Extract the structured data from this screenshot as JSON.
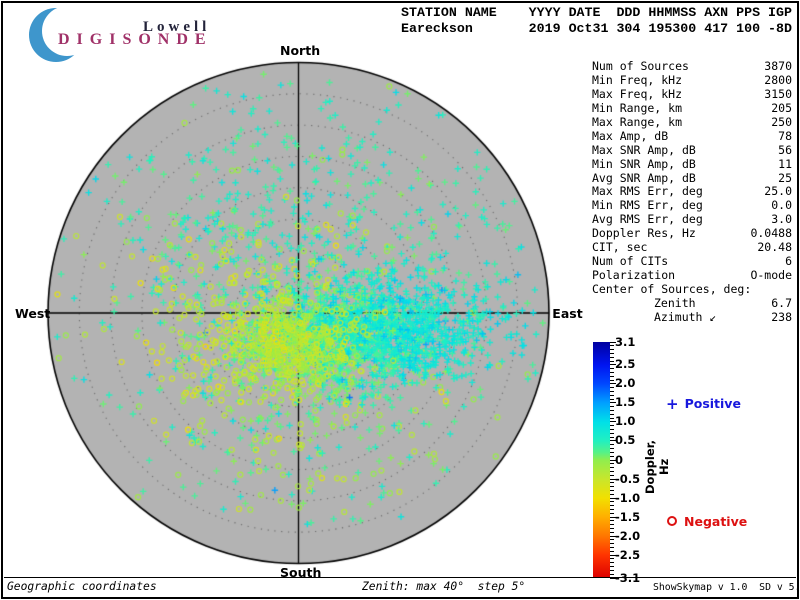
{
  "logo": {
    "brand_top": "Lowell",
    "brand_bottom": "DIGISONDE",
    "crescent_color": "#3e96cc"
  },
  "header": {
    "line1": "STATION NAME    YYYY DATE  DDD HHMMSS AXN PPS IGP",
    "line2": "Eareckson       2019 Oct31 304 195300 417 100 -8D"
  },
  "stats": {
    "rows": [
      {
        "label": "Num of Sources",
        "value": "3870"
      },
      {
        "label": "Min Freq, kHz",
        "value": "2800"
      },
      {
        "label": "Max Freq, kHz",
        "value": "3150"
      },
      {
        "label": "Min Range, km",
        "value": "205"
      },
      {
        "label": "Max Range, km",
        "value": "250"
      },
      {
        "label": "Max Amp, dB",
        "value": "78"
      },
      {
        "label": "Max SNR Amp, dB",
        "value": "56"
      },
      {
        "label": "Min SNR Amp, dB",
        "value": "11"
      },
      {
        "label": "Avg SNR Amp, dB",
        "value": "25"
      },
      {
        "label": "Max RMS Err, deg",
        "value": "25.0"
      },
      {
        "label": "Min RMS Err, deg",
        "value": "0.0"
      },
      {
        "label": "Avg RMS Err, deg",
        "value": "3.0"
      },
      {
        "label": "Doppler Res, Hz",
        "value": "0.0488"
      },
      {
        "label": "CIT, sec",
        "value": "20.48"
      },
      {
        "label": "Num of CITs",
        "value": "6"
      },
      {
        "label": "Polarization",
        "value": "O-mode"
      },
      {
        "label": "Center of Sources, deg:",
        "value": ""
      },
      {
        "label": "Zenith",
        "value": "6.7",
        "indent": true
      },
      {
        "label": "Azimuth ↙",
        "value": "238",
        "indent": true
      }
    ]
  },
  "compass": {
    "north": "North",
    "south": "South",
    "east": "East",
    "west": "West"
  },
  "legend": {
    "positive_label": "Positive",
    "positive_color": "#1818dd",
    "negative_label": "Negative",
    "negative_color": "#dd1111"
  },
  "colorbar": {
    "label": "Doppler, Hz",
    "max": 3.1,
    "min": -3.1,
    "ticks": [
      "3.1",
      "2.5",
      "2.0",
      "1.5",
      "1.0",
      "0.5",
      "0",
      "-0.5",
      "-1.0",
      "-1.5",
      "-2.0",
      "-2.5",
      "-3.1"
    ]
  },
  "footer": {
    "left": "Geographic coordinates",
    "center": "Zenith: max 40°  step 5°",
    "right": "ShowSkymap v 1.0  SD v 5.1"
  },
  "chart_data": {
    "type": "scatter",
    "projection": "polar-skymap",
    "coordinates": "Geographic",
    "zenith_max_deg": 40,
    "zenith_step_deg": 5,
    "num_sources": 3870,
    "doppler_range_hz": [
      -3.1,
      3.1
    ],
    "center_of_sources": {
      "zenith_deg": 6.7,
      "azimuth_deg": 238
    },
    "marker_rules": {
      "positive_doppler": "+",
      "negative_doppler": "o"
    },
    "colors": {
      "disc": "#b3b3b3",
      "grid_dots": "#6a6a6a",
      "axis": "#000000"
    },
    "colormap_stops": [
      [
        3.1,
        "#0000a0"
      ],
      [
        2.5,
        "#0014f0"
      ],
      [
        2.0,
        "#0048ff"
      ],
      [
        1.5,
        "#00a0ff"
      ],
      [
        1.0,
        "#00e0e8"
      ],
      [
        0.5,
        "#22f0c0"
      ],
      [
        0.2,
        "#55f288"
      ],
      [
        0.0,
        "#90ee4e"
      ],
      [
        -0.5,
        "#c8e62c"
      ],
      [
        -1.0,
        "#f2e000"
      ],
      [
        -1.5,
        "#ffae00"
      ],
      [
        -2.0,
        "#ff7600"
      ],
      [
        -2.5,
        "#ff3400"
      ],
      [
        -3.1,
        "#dc0000"
      ]
    ],
    "clusters": [
      {
        "name": "upper-diffuse",
        "count": 420,
        "dx_deg": 1.6,
        "dy_deg": -9.6,
        "sx_deg": 16.8,
        "sy_deg": 13.6,
        "doppler_mean": 0.45,
        "doppler_sd": 0.25
      },
      {
        "name": "wide-diffuse",
        "count": 260,
        "dx_deg": 0.0,
        "dy_deg": 1.6,
        "sx_deg": 20.8,
        "sy_deg": 17.6,
        "doppler_mean": 0.25,
        "doppler_sd": 0.45
      },
      {
        "name": "outer-sparse",
        "count": 90,
        "dx_deg": 0.0,
        "dy_deg": -2.0,
        "sx_deg": 19.0,
        "sy_deg": 17.0,
        "doppler_mean": 0.4,
        "doppler_sd": 0.3
      },
      {
        "name": "south-sparse",
        "count": 130,
        "dx_deg": 4.8,
        "dy_deg": 19.2,
        "sx_deg": 12.0,
        "sy_deg": 10.4,
        "doppler_mean": 0.1,
        "doppler_sd": 0.4
      },
      {
        "name": "west-negative-halo",
        "count": 260,
        "dx_deg": -8.0,
        "dy_deg": 4.0,
        "sx_deg": 9.6,
        "sy_deg": 8.8,
        "doppler_mean": -0.45,
        "doppler_sd": 0.25
      },
      {
        "name": "mid-green-core",
        "count": 650,
        "dx_deg": 5.6,
        "dy_deg": 4.5,
        "sx_deg": 6.7,
        "sy_deg": 4.2,
        "doppler_mean": 0.25,
        "doppler_sd": 0.15
      },
      {
        "name": "east-cyan-core",
        "count": 950,
        "dx_deg": 15.2,
        "dy_deg": 2.4,
        "sx_deg": 8.3,
        "sy_deg": 4.3,
        "doppler_mean": 0.75,
        "doppler_sd": 0.25
      },
      {
        "name": "yellow-core",
        "count": 520,
        "dx_deg": -0.8,
        "dy_deg": 5.3,
        "sx_deg": 5.3,
        "sy_deg": 3.5,
        "doppler_mean": -0.35,
        "doppler_sd": 0.25
      }
    ]
  }
}
